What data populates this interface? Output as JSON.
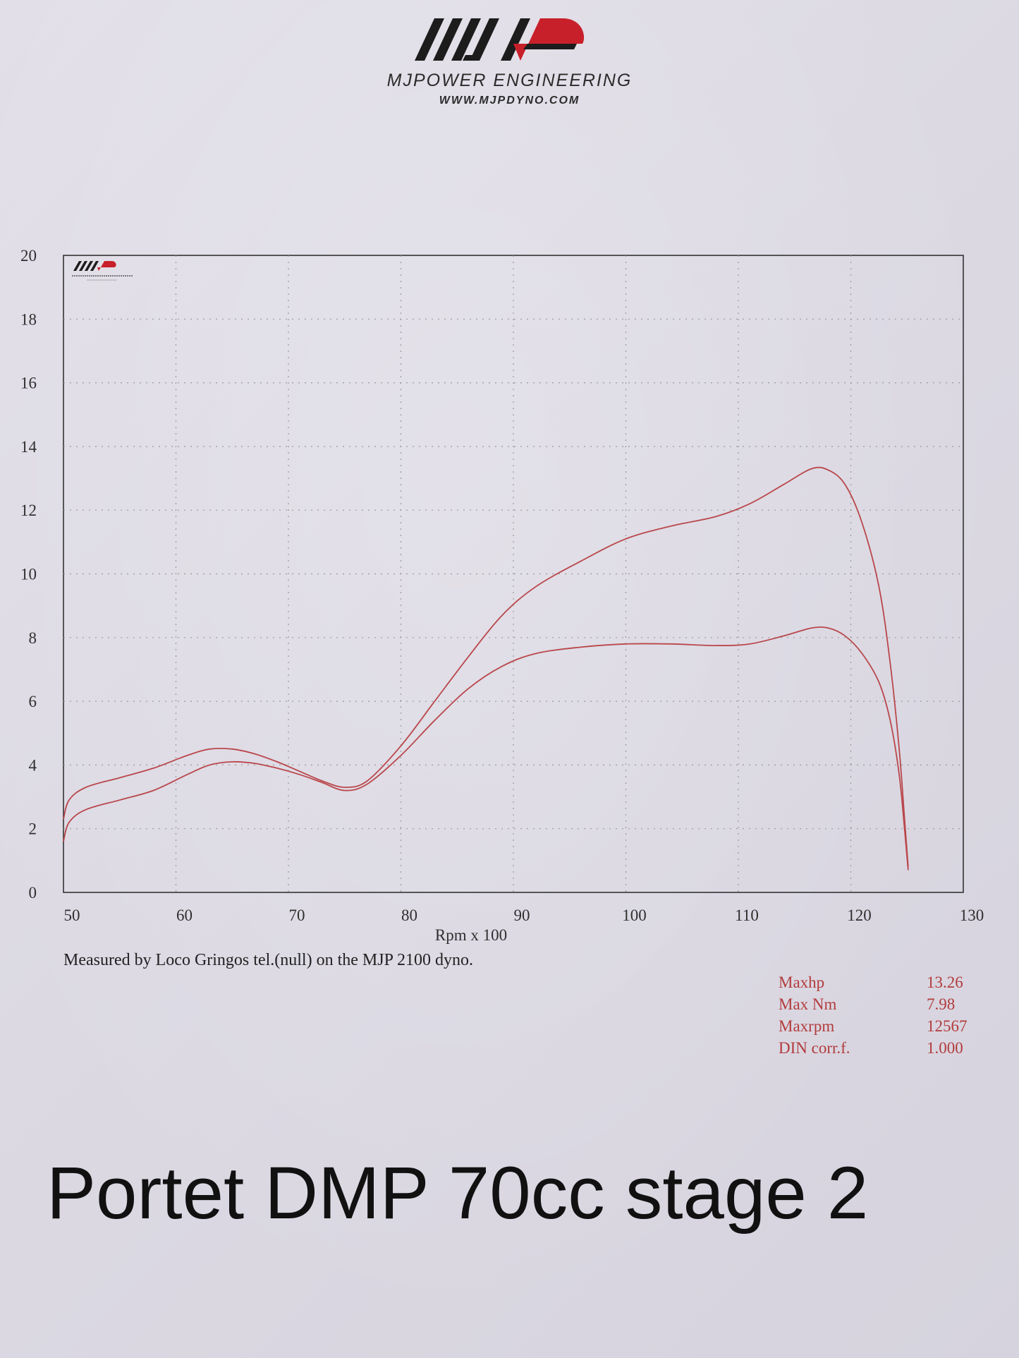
{
  "brand": {
    "logo_text": "MJP",
    "name": "MJPOWER ENGINEERING",
    "url": "WWW.MJPDYNO.COM"
  },
  "chart_data": {
    "type": "line",
    "title": "",
    "xlabel": "Rpm x 100",
    "ylabel": "",
    "xlim": [
      50,
      130
    ],
    "ylim": [
      0,
      20
    ],
    "x_ticks": [
      50,
      60,
      70,
      80,
      90,
      100,
      110,
      120,
      130
    ],
    "y_ticks": [
      0,
      2,
      4,
      6,
      8,
      10,
      12,
      14,
      16,
      18,
      20
    ],
    "grid": true,
    "line_color": "#b9474b",
    "series": [
      {
        "x": [
          50,
          50.5,
          52,
          55,
          58,
          61,
          63,
          65,
          67,
          69,
          71,
          73,
          75,
          77,
          80,
          83,
          86,
          89,
          92,
          96,
          100,
          104,
          108,
          111,
          114,
          116.5,
          118,
          119.5,
          121,
          122.5,
          123.5,
          124.3,
          124.8,
          125.1
        ],
        "y": [
          2.3,
          2.9,
          3.3,
          3.6,
          3.9,
          4.3,
          4.5,
          4.5,
          4.35,
          4.1,
          3.8,
          3.5,
          3.3,
          3.5,
          4.6,
          6.0,
          7.4,
          8.7,
          9.6,
          10.4,
          11.1,
          11.5,
          11.8,
          12.2,
          12.8,
          13.3,
          13.26,
          12.8,
          11.6,
          9.6,
          7.2,
          4.5,
          2.2,
          0.8
        ]
      },
      {
        "x": [
          50,
          50.5,
          52,
          55,
          58,
          61,
          63,
          65,
          67,
          69,
          71,
          73,
          75,
          77,
          80,
          83,
          86,
          89,
          92,
          96,
          100,
          104,
          108,
          111,
          114,
          116.5,
          118,
          119.5,
          121,
          122.5,
          123.5,
          124.3,
          124.8,
          125.1
        ],
        "y": [
          1.6,
          2.2,
          2.6,
          2.9,
          3.2,
          3.7,
          4.0,
          4.1,
          4.05,
          3.9,
          3.7,
          3.45,
          3.2,
          3.4,
          4.3,
          5.4,
          6.4,
          7.1,
          7.5,
          7.7,
          7.8,
          7.8,
          7.75,
          7.8,
          8.05,
          8.3,
          8.3,
          8.05,
          7.5,
          6.6,
          5.4,
          3.7,
          1.9,
          0.7
        ]
      }
    ]
  },
  "measured_note": "Measured by Loco Gringos tel.(null) on the MJP 2100 dyno.",
  "stats": [
    {
      "label": "Maxhp",
      "value": "13.26"
    },
    {
      "label": "Max Nm",
      "value": "7.98"
    },
    {
      "label": "Maxrpm",
      "value": "12567"
    },
    {
      "label": "DIN corr.f.",
      "value": "1.000"
    }
  ],
  "caption": "Portet DMP 70cc stage 2"
}
